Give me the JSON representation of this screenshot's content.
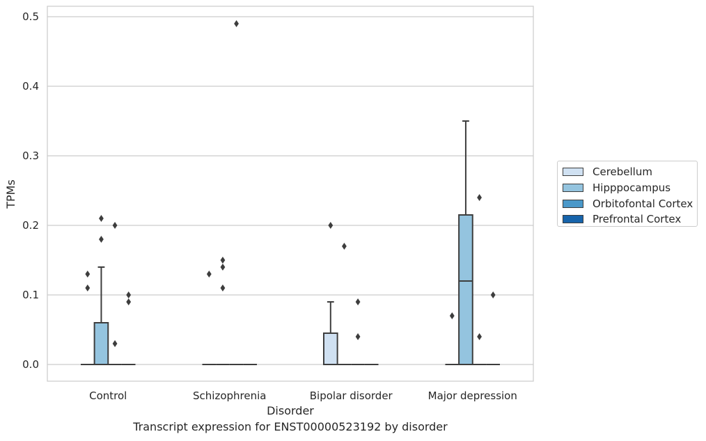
{
  "chart_data": {
    "type": "box",
    "ylabel": "TPMs",
    "xlabel": "Disorder",
    "caption": "Transcript expression for ENST00000523192 by disorder",
    "ylim": [
      -0.024,
      0.515
    ],
    "yticks": [
      "0.0",
      "0.1",
      "0.2",
      "0.3",
      "0.4",
      "0.5"
    ],
    "grid": true,
    "legend_position": "right",
    "categories": [
      "Control",
      "Schizophrenia",
      "Bipolar disorder",
      "Major depression"
    ],
    "series": [
      {
        "name": "Cerebellum",
        "color": "#d0e1f2"
      },
      {
        "name": "Hipppocampus",
        "color": "#94c4df"
      },
      {
        "name": "Orbitofontal Cortex",
        "color": "#4a98c9"
      },
      {
        "name": "Prefrontal Cortex",
        "color": "#1764ab"
      }
    ],
    "boxes": [
      {
        "category": 0,
        "series": 0,
        "q1": 0,
        "median": 0,
        "q3": 0,
        "whisker_low": 0,
        "whisker_high": 0,
        "outliers": [
          0.11,
          0.13
        ]
      },
      {
        "category": 0,
        "series": 1,
        "q1": 0,
        "median": 0,
        "q3": 0.06,
        "whisker_low": 0,
        "whisker_high": 0.14,
        "outliers": [
          0.18,
          0.21
        ]
      },
      {
        "category": 0,
        "series": 2,
        "q1": 0,
        "median": 0,
        "q3": 0,
        "whisker_low": 0,
        "whisker_high": 0,
        "outliers": [
          0.03,
          0.2
        ]
      },
      {
        "category": 0,
        "series": 3,
        "q1": 0,
        "median": 0,
        "q3": 0,
        "whisker_low": 0,
        "whisker_high": 0,
        "outliers": [
          0.09,
          0.1
        ]
      },
      {
        "category": 1,
        "series": 0,
        "q1": 0,
        "median": 0,
        "q3": 0,
        "whisker_low": 0,
        "whisker_high": 0,
        "outliers": [
          0.13
        ]
      },
      {
        "category": 1,
        "series": 1,
        "q1": 0,
        "median": 0,
        "q3": 0,
        "whisker_low": 0,
        "whisker_high": 0,
        "outliers": [
          0.11,
          0.14,
          0.15
        ]
      },
      {
        "category": 1,
        "series": 2,
        "q1": 0,
        "median": 0,
        "q3": 0,
        "whisker_low": 0,
        "whisker_high": 0,
        "outliers": [
          0.49
        ]
      },
      {
        "category": 1,
        "series": 3,
        "q1": 0,
        "median": 0,
        "q3": 0,
        "whisker_low": 0,
        "whisker_high": 0,
        "outliers": []
      },
      {
        "category": 2,
        "series": 0,
        "q1": 0,
        "median": 0,
        "q3": 0.045,
        "whisker_low": 0,
        "whisker_high": 0.09,
        "outliers": [
          0.2
        ]
      },
      {
        "category": 2,
        "series": 1,
        "q1": 0,
        "median": 0,
        "q3": 0,
        "whisker_low": 0,
        "whisker_high": 0,
        "outliers": [
          0.17
        ]
      },
      {
        "category": 2,
        "series": 2,
        "q1": 0,
        "median": 0,
        "q3": 0,
        "whisker_low": 0,
        "whisker_high": 0,
        "outliers": [
          0.04,
          0.09
        ]
      },
      {
        "category": 2,
        "series": 3,
        "q1": 0,
        "median": 0,
        "q3": 0,
        "whisker_low": 0,
        "whisker_high": 0,
        "outliers": []
      },
      {
        "category": 3,
        "series": 0,
        "q1": 0,
        "median": 0,
        "q3": 0,
        "whisker_low": 0,
        "whisker_high": 0,
        "outliers": [
          0.07
        ]
      },
      {
        "category": 3,
        "series": 1,
        "q1": 0,
        "median": 0.12,
        "q3": 0.215,
        "whisker_low": 0,
        "whisker_high": 0.35,
        "outliers": []
      },
      {
        "category": 3,
        "series": 2,
        "q1": 0,
        "median": 0,
        "q3": 0,
        "whisker_low": 0,
        "whisker_high": 0,
        "outliers": [
          0.04,
          0.24
        ]
      },
      {
        "category": 3,
        "series": 3,
        "q1": 0,
        "median": 0,
        "q3": 0,
        "whisker_low": 0,
        "whisker_high": 0,
        "outliers": [
          0.1
        ]
      }
    ]
  }
}
